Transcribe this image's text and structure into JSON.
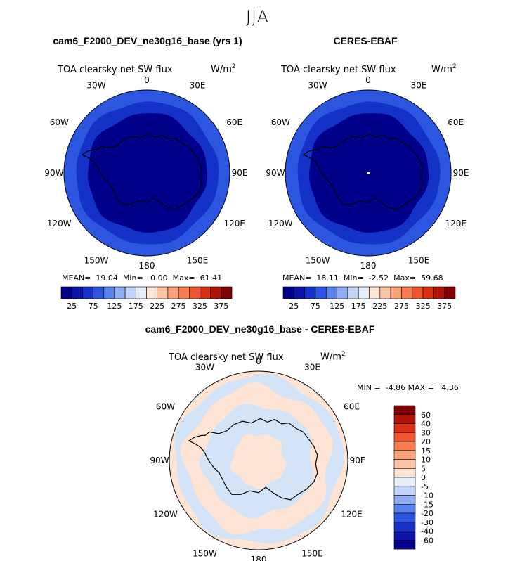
{
  "season": "JJA",
  "panels": {
    "model": {
      "title": "cam6_F2000_DEV_ne30g16_base (yrs 1)",
      "variable": "TOA clearsky net SW flux",
      "units": "W/m",
      "units_exp": "2",
      "mean_label": "MEAN=",
      "mean": "19.04",
      "min_label": "Min=",
      "min": "0.00",
      "max_label": "Max=",
      "max": "61.41"
    },
    "obs": {
      "title": "CERES-EBAF",
      "variable": "TOA clearsky net SW flux",
      "units": "W/m",
      "units_exp": "2",
      "mean_label": "MEAN=",
      "mean": "18.11",
      "min_label": "Min=",
      "min": "-2.52",
      "max_label": "Max=",
      "max": "59.68"
    },
    "diff": {
      "title": "cam6_F2000_DEV_ne30g16_base - CERES-EBAF",
      "variable": "TOA clearsky net SW flux",
      "units": "W/m",
      "units_exp": "2",
      "min_label": "MIN =",
      "min": "-4.86",
      "max_label": "MAX =",
      "max": "4.36"
    }
  },
  "lon_labels": [
    "0",
    "30E",
    "60E",
    "90E",
    "120E",
    "150E",
    "180",
    "150W",
    "120W",
    "90W",
    "60W",
    "30W"
  ],
  "colorbar_abs": {
    "colors": [
      "#00008b",
      "#0a14a8",
      "#1432c8",
      "#2d56e0",
      "#5a82eb",
      "#8eaef0",
      "#c0d4f5",
      "#e6eefa",
      "#fde4d4",
      "#fcc4a4",
      "#fba27a",
      "#f97c50",
      "#ee5530",
      "#d83018",
      "#b01408",
      "#800000"
    ],
    "ticks": [
      "25",
      "75",
      "125",
      "175",
      "225",
      "275",
      "325",
      "375"
    ]
  },
  "colorbar_diff": {
    "colors": [
      "#800000",
      "#b01408",
      "#d83018",
      "#ee5530",
      "#f97c50",
      "#fba27a",
      "#fcc4a4",
      "#fde4d4",
      "#e6eefa",
      "#c0d4f5",
      "#8eaef0",
      "#5a82eb",
      "#2d56e0",
      "#1432c8",
      "#0a14a8",
      "#00008b"
    ],
    "ticks": [
      "60",
      "40",
      "30",
      "20",
      "15",
      "10",
      "5",
      "0",
      "-5",
      "-10",
      "-15",
      "-20",
      "-30",
      "-40",
      "-60"
    ]
  },
  "map_colors": {
    "abs_outer": "#2d56e0",
    "abs_mid": "#1432c8",
    "abs_inner": "#00008b",
    "diff_pos": "#fde4d4",
    "diff_neg": "#d4e4f8",
    "coast": "#000000"
  }
}
